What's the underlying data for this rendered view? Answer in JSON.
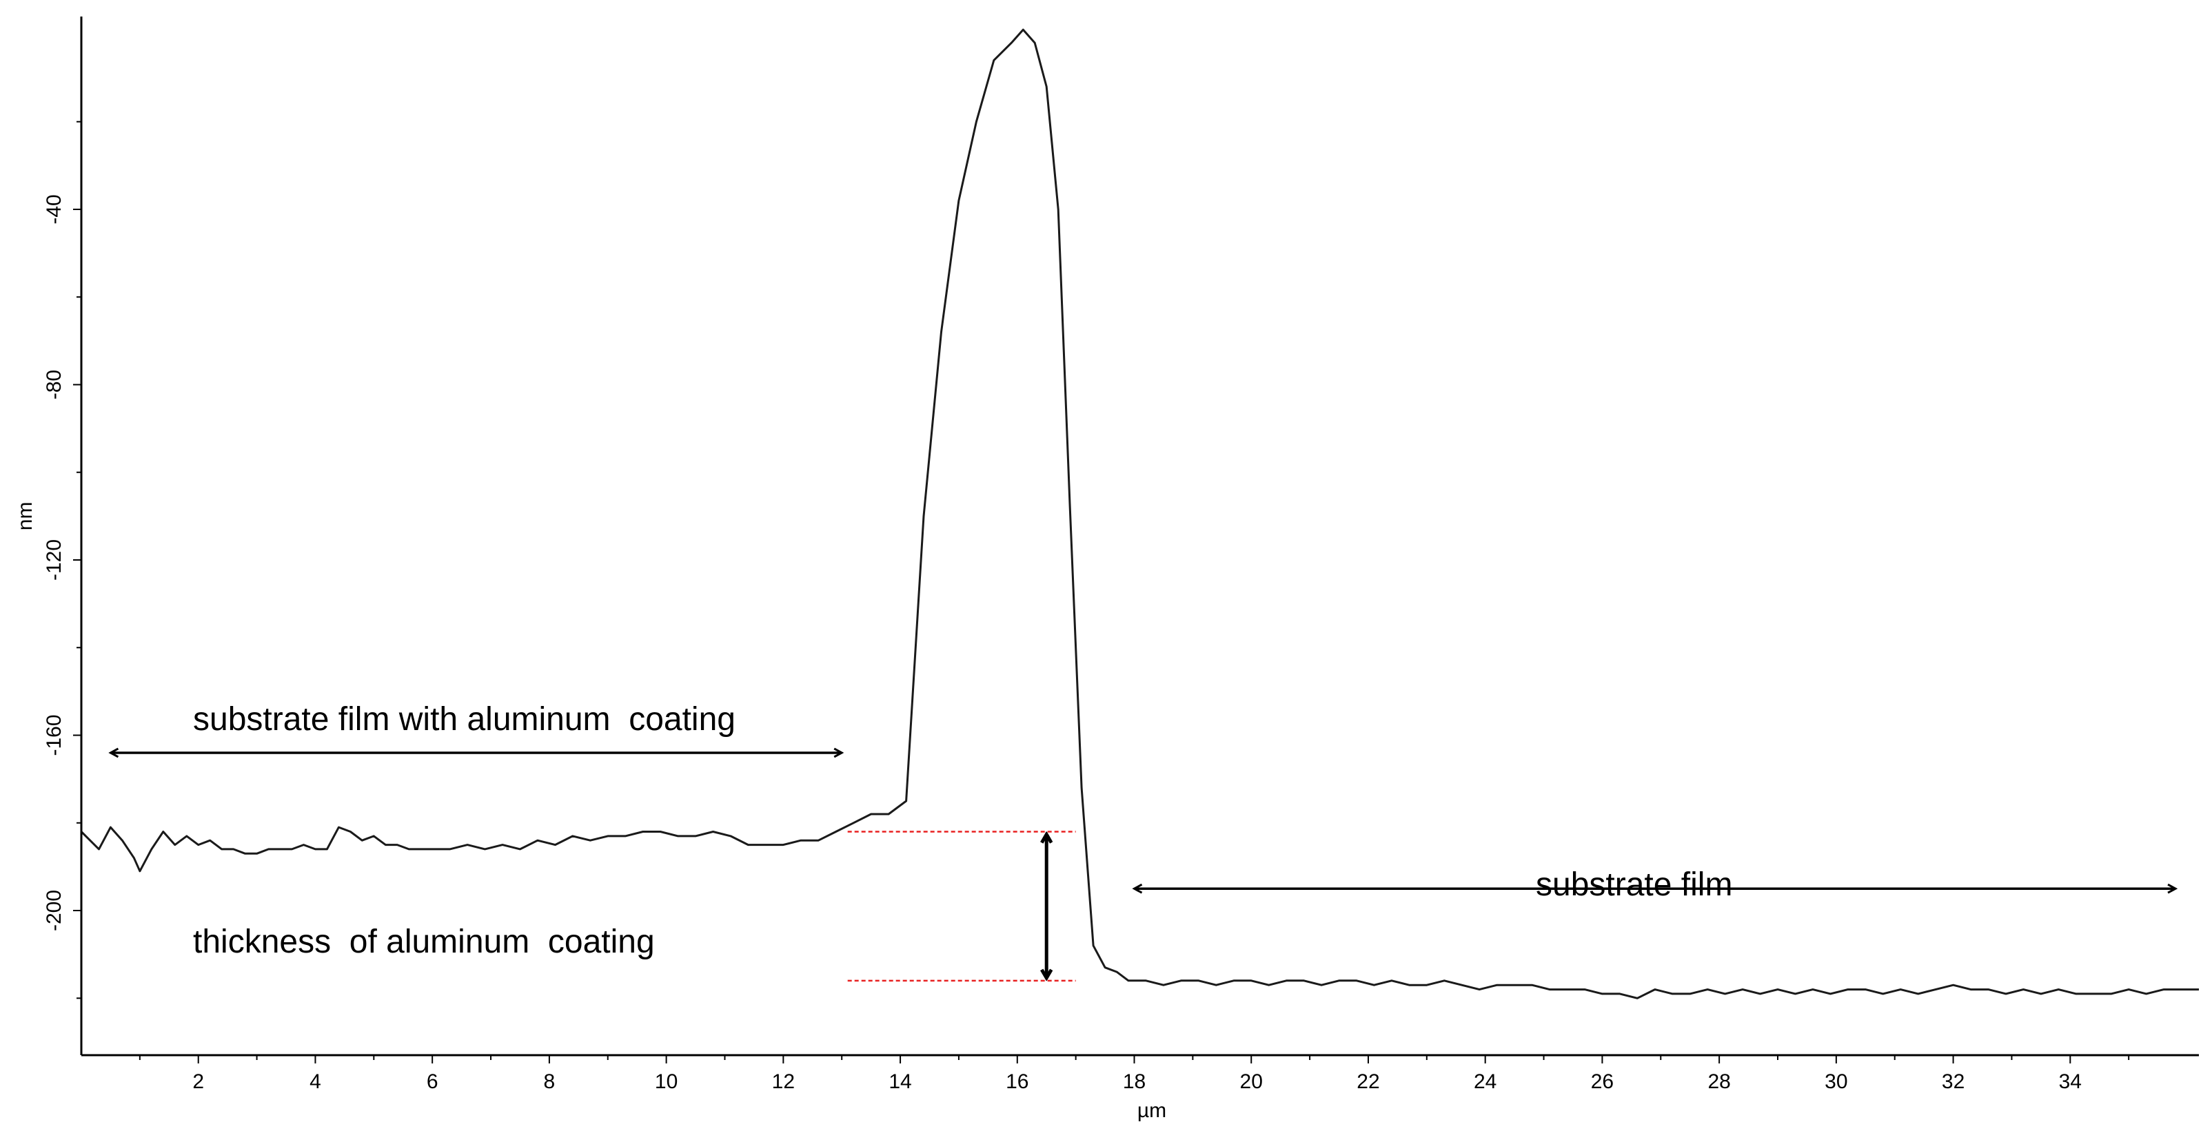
{
  "chart_data": {
    "type": "line",
    "title": "",
    "xlabel": "µm",
    "ylabel": "nm",
    "xlim": [
      0,
      36.2
    ],
    "ylim": [
      -233,
      4
    ],
    "x_ticks": [
      2,
      4,
      6,
      8,
      10,
      12,
      14,
      16,
      18,
      20,
      22,
      24,
      26,
      28,
      30,
      32,
      34
    ],
    "x_tick_labels": [
      "2",
      "4",
      "6",
      "8",
      "10",
      "12",
      "14",
      "16",
      "18",
      "20",
      "22",
      "24",
      "26",
      "28",
      "30",
      "32",
      "34"
    ],
    "y_ticks": [
      -40,
      -80,
      -120,
      -160,
      -200
    ],
    "y_tick_labels": [
      "-40",
      "-80",
      "-120",
      "-160",
      "-200"
    ],
    "grid": false,
    "series": [
      {
        "x": [
          0.0,
          0.3,
          0.5,
          0.7,
          0.9,
          1.0,
          1.2,
          1.4,
          1.6,
          1.8,
          2.0,
          2.2,
          2.4,
          2.6,
          2.8,
          3.0,
          3.2,
          3.4,
          3.6,
          3.8,
          4.0,
          4.2,
          4.4,
          4.6,
          4.8,
          5.0,
          5.2,
          5.4,
          5.6,
          5.8,
          6.0,
          6.3,
          6.6,
          6.9,
          7.2,
          7.5,
          7.8,
          8.1,
          8.4,
          8.7,
          9.0,
          9.3,
          9.6,
          9.9,
          10.2,
          10.5,
          10.8,
          11.1,
          11.4,
          11.7,
          12.0,
          12.3,
          12.6,
          12.9,
          13.2,
          13.5,
          13.8,
          14.1,
          14.4,
          14.7,
          15.0,
          15.3,
          15.6,
          15.9,
          16.1,
          16.3,
          16.5,
          16.7,
          16.9,
          17.1,
          17.3,
          17.5,
          17.7,
          17.9,
          18.2,
          18.5,
          18.8,
          19.1,
          19.4,
          19.7,
          20.0,
          20.3,
          20.6,
          20.9,
          21.2,
          21.5,
          21.8,
          22.1,
          22.4,
          22.7,
          23.0,
          23.3,
          23.6,
          23.9,
          24.2,
          24.5,
          24.8,
          25.1,
          25.4,
          25.7,
          26.0,
          26.3,
          26.6,
          26.9,
          27.2,
          27.5,
          27.8,
          28.1,
          28.4,
          28.7,
          29.0,
          29.3,
          29.6,
          29.9,
          30.2,
          30.5,
          30.8,
          31.1,
          31.4,
          31.7,
          32.0,
          32.3,
          32.6,
          32.9,
          33.2,
          33.5,
          33.8,
          34.1,
          34.4,
          34.7,
          35.0,
          35.3,
          35.6,
          35.9,
          36.2
        ],
        "values": [
          -182,
          -186,
          -181,
          -184,
          -188,
          -191,
          -186,
          -182,
          -185,
          -183,
          -185,
          -184,
          -186,
          -186,
          -187,
          -187,
          -186,
          -186,
          -186,
          -185,
          -186,
          -186,
          -181,
          -182,
          -184,
          -183,
          -185,
          -185,
          -186,
          -186,
          -186,
          -186,
          -185,
          -186,
          -185,
          -186,
          -184,
          -185,
          -183,
          -184,
          -183,
          -183,
          -182,
          -182,
          -183,
          -183,
          -182,
          -183,
          -185,
          -185,
          -185,
          -184,
          -184,
          -182,
          -180,
          -178,
          -178,
          -175,
          -110,
          -68,
          -38,
          -20,
          -6,
          -2,
          1,
          -2,
          -12,
          -40,
          -108,
          -172,
          -208,
          -213,
          -214,
          -216,
          -216,
          -217,
          -216,
          -216,
          -217,
          -216,
          -216,
          -217,
          -216,
          -216,
          -217,
          -216,
          -216,
          -217,
          -216,
          -217,
          -217,
          -216,
          -217,
          -218,
          -217,
          -217,
          -217,
          -218,
          -218,
          -218,
          -219,
          -219,
          -220,
          -218,
          -219,
          -219,
          -218,
          -219,
          -218,
          -219,
          -218,
          -219,
          -218,
          -219,
          -218,
          -218,
          -219,
          -218,
          -219,
          -218,
          -217,
          -218,
          -218,
          -219,
          -218,
          -219,
          -218,
          -219,
          -219,
          -219,
          -218,
          -219,
          -218,
          -218,
          -218
        ]
      }
    ],
    "annotations": [
      {
        "text": "substrate film with aluminum  coating",
        "arrow_x": [
          0.5,
          13.0
        ],
        "arrow_y": -164
      },
      {
        "text": "thickness  of aluminum  coating",
        "arrow_x": [
          16.5,
          16.5
        ],
        "arrow_y": [
          -182,
          -216
        ]
      },
      {
        "text": "substrate film",
        "arrow_x": [
          18.0,
          35.8
        ],
        "arrow_y": -195
      }
    ],
    "reference_lines": [
      {
        "y": -182,
        "x": [
          13.1,
          17.0
        ],
        "color": "#e82020",
        "style": "dashed"
      },
      {
        "y": -216,
        "x": [
          13.1,
          17.0
        ],
        "color": "#e82020",
        "style": "dashed"
      }
    ]
  }
}
